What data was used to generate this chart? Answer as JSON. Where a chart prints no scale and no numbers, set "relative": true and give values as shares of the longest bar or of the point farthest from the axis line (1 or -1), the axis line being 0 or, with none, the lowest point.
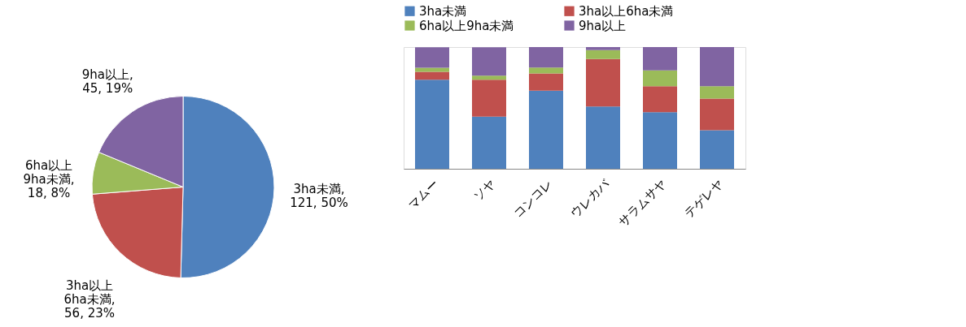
{
  "chart_data": [
    {
      "type": "pie",
      "categories": [
        "3ha未満",
        "3ha以上6ha未満",
        "6ha以上9ha未満",
        "9ha以上"
      ],
      "values": [
        121,
        56,
        18,
        45
      ],
      "colors": [
        "#4f81bd",
        "#c0504d",
        "#9bbb59",
        "#8064a2"
      ],
      "value_labels": [
        ", 121, 50%",
        ", 56, 23%",
        ", 18, 8%",
        ", 45, 19%"
      ]
    },
    {
      "type": "bar",
      "stacked": true,
      "relative": true,
      "legend": "top",
      "categories": [
        "マムー",
        "ソヤ",
        "コンコレ",
        "ウレカバ",
        "サラムサヤ",
        "テゲレヤ"
      ],
      "series": [
        {
          "name": "3ha未満",
          "color": "#4f81bd",
          "values": [
            0.732,
            0.429,
            0.642,
            0.512,
            0.465,
            0.317
          ]
        },
        {
          "name": "3ha以上6ha未満",
          "color": "#c0504d",
          "values": [
            0.065,
            0.303,
            0.142,
            0.39,
            0.213,
            0.26
          ]
        },
        {
          "name": "6ha以上9ha未満",
          "color": "#9bbb59",
          "values": [
            0.033,
            0.033,
            0.047,
            0.073,
            0.13,
            0.102
          ]
        },
        {
          "name": "9ha以上",
          "color": "#8064a2",
          "values": [
            0.169,
            0.234,
            0.169,
            0.025,
            0.192,
            0.321
          ]
        }
      ]
    }
  ]
}
